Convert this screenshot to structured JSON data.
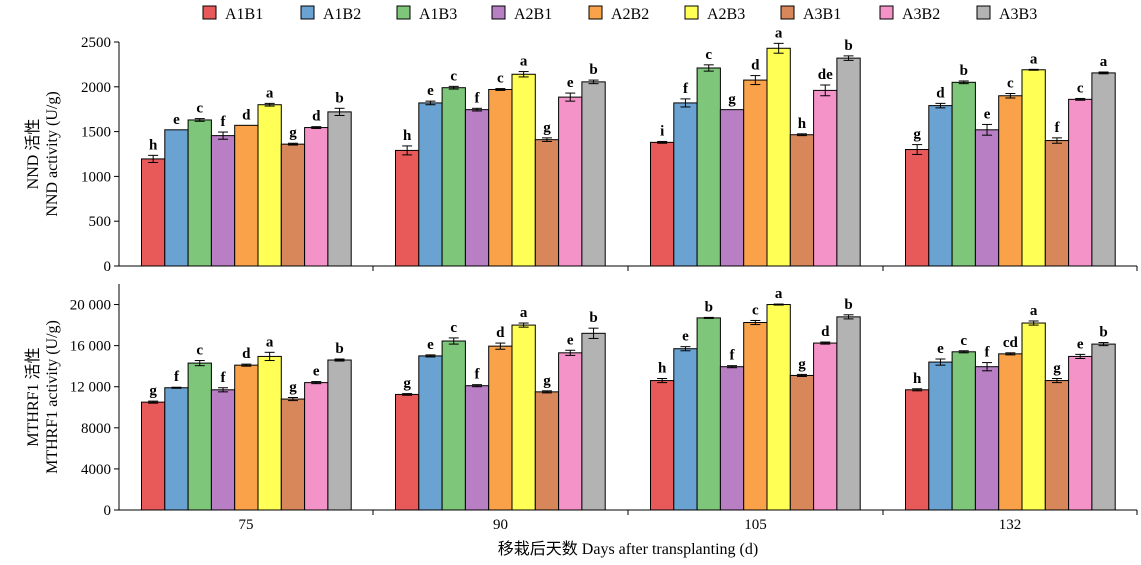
{
  "legend": [
    "A1B1",
    "A1B2",
    "A1B3",
    "A2B1",
    "A2B2",
    "A2B3",
    "A3B1",
    "A3B2",
    "A3B3"
  ],
  "colors": [
    "#e85a5a",
    "#6aa2d2",
    "#7ec77a",
    "#b97fc4",
    "#f9a24a",
    "#ffff55",
    "#d8875a",
    "#f493c8",
    "#b3b3b3"
  ],
  "xlabel": "移栽后天数 Days after transplanting (d)",
  "chart_data": [
    {
      "type": "bar",
      "ylabel_zh": "NND 活性",
      "ylabel_en": "NND activity (U/g)",
      "ylim": [
        0,
        2500
      ],
      "yticks": [
        0,
        500,
        1000,
        1500,
        2000,
        2500
      ],
      "ytick_labels": [
        "0",
        "500",
        "1000",
        "1500",
        "2000",
        "2500"
      ],
      "categories": [
        "75",
        "90",
        "105",
        "132"
      ],
      "series": [
        {
          "name": "A1B1",
          "values": [
            1195,
            1290,
            1380,
            1300
          ],
          "errors": [
            40,
            50,
            10,
            55
          ],
          "letters": [
            "h",
            "h",
            "i",
            "g"
          ]
        },
        {
          "name": "A1B2",
          "values": [
            1520,
            1820,
            1820,
            1790
          ],
          "errors": [
            0,
            20,
            45,
            25
          ],
          "letters": [
            "e",
            "e",
            "f",
            "d"
          ]
        },
        {
          "name": "A1B3",
          "values": [
            1630,
            1990,
            2210,
            2050
          ],
          "errors": [
            15,
            15,
            35,
            15
          ],
          "letters": [
            "c",
            "c",
            "c",
            "b"
          ]
        },
        {
          "name": "A2B1",
          "values": [
            1455,
            1745,
            1745,
            1520
          ],
          "errors": [
            40,
            15,
            0,
            60
          ],
          "letters": [
            "f",
            "f",
            "g",
            "e"
          ]
        },
        {
          "name": "A2B2",
          "values": [
            1570,
            1970,
            2075,
            1900
          ],
          "errors": [
            0,
            10,
            50,
            25
          ],
          "letters": [
            "d",
            "c",
            "d",
            "c"
          ]
        },
        {
          "name": "A2B3",
          "values": [
            1800,
            2140,
            2430,
            2190
          ],
          "errors": [
            15,
            30,
            55,
            5
          ],
          "letters": [
            "a",
            "a",
            "a",
            "a"
          ]
        },
        {
          "name": "A3B1",
          "values": [
            1360,
            1410,
            1465,
            1400
          ],
          "errors": [
            10,
            20,
            10,
            30
          ],
          "letters": [
            "g",
            "g",
            "h",
            "f"
          ]
        },
        {
          "name": "A3B2",
          "values": [
            1545,
            1885,
            1960,
            1860
          ],
          "errors": [
            10,
            45,
            60,
            10
          ],
          "letters": [
            "d",
            "e",
            "de",
            "c"
          ]
        },
        {
          "name": "A3B3",
          "values": [
            1720,
            2055,
            2320,
            2155
          ],
          "errors": [
            40,
            20,
            25,
            10
          ],
          "letters": [
            "b",
            "b",
            "b",
            "a"
          ]
        }
      ]
    },
    {
      "type": "bar",
      "ylabel_zh": "MTHRF1 活性",
      "ylabel_en": "MTHRF1 activity (U/g)",
      "ylim": [
        0,
        22000
      ],
      "yticks": [
        0,
        4000,
        8000,
        12000,
        16000,
        20000
      ],
      "ytick_labels": [
        "0",
        "4000",
        "8000",
        "12 000",
        "16 000",
        "20 000"
      ],
      "categories": [
        "75",
        "90",
        "105",
        "132"
      ],
      "series": [
        {
          "name": "A1B1",
          "values": [
            10500,
            11250,
            12600,
            11700
          ],
          "errors": [
            100,
            80,
            200,
            100
          ],
          "letters": [
            "g",
            "g",
            "h",
            "h"
          ]
        },
        {
          "name": "A1B2",
          "values": [
            11900,
            15000,
            15700,
            14400
          ],
          "errors": [
            50,
            100,
            200,
            300
          ],
          "letters": [
            "f",
            "e",
            "e",
            "e"
          ]
        },
        {
          "name": "A1B3",
          "values": [
            14300,
            16450,
            18700,
            15400
          ],
          "errors": [
            250,
            300,
            50,
            100
          ],
          "letters": [
            "c",
            "c",
            "b",
            "c"
          ]
        },
        {
          "name": "A2B1",
          "values": [
            11700,
            12100,
            13950,
            13950
          ],
          "errors": [
            200,
            100,
            100,
            400
          ],
          "letters": [
            "f",
            "f",
            "f",
            "f"
          ]
        },
        {
          "name": "A2B2",
          "values": [
            14100,
            15950,
            18250,
            15200
          ],
          "errors": [
            100,
            300,
            200,
            100
          ],
          "letters": [
            "d",
            "d",
            "c",
            "cd"
          ]
        },
        {
          "name": "A2B3",
          "values": [
            14950,
            18000,
            20000,
            18200
          ],
          "errors": [
            400,
            200,
            50,
            200
          ],
          "letters": [
            "a",
            "a",
            "a",
            "a"
          ]
        },
        {
          "name": "A3B1",
          "values": [
            10800,
            11500,
            13100,
            12600
          ],
          "errors": [
            150,
            100,
            100,
            200
          ],
          "letters": [
            "g",
            "g",
            "g",
            "g"
          ]
        },
        {
          "name": "A3B2",
          "values": [
            12400,
            15300,
            16250,
            14950
          ],
          "errors": [
            100,
            250,
            100,
            200
          ],
          "letters": [
            "e",
            "e",
            "d",
            "e"
          ]
        },
        {
          "name": "A3B3",
          "values": [
            14600,
            17200,
            18800,
            16150
          ],
          "errors": [
            100,
            500,
            200,
            150
          ],
          "letters": [
            "b",
            "b",
            "b",
            "b"
          ]
        }
      ]
    }
  ]
}
